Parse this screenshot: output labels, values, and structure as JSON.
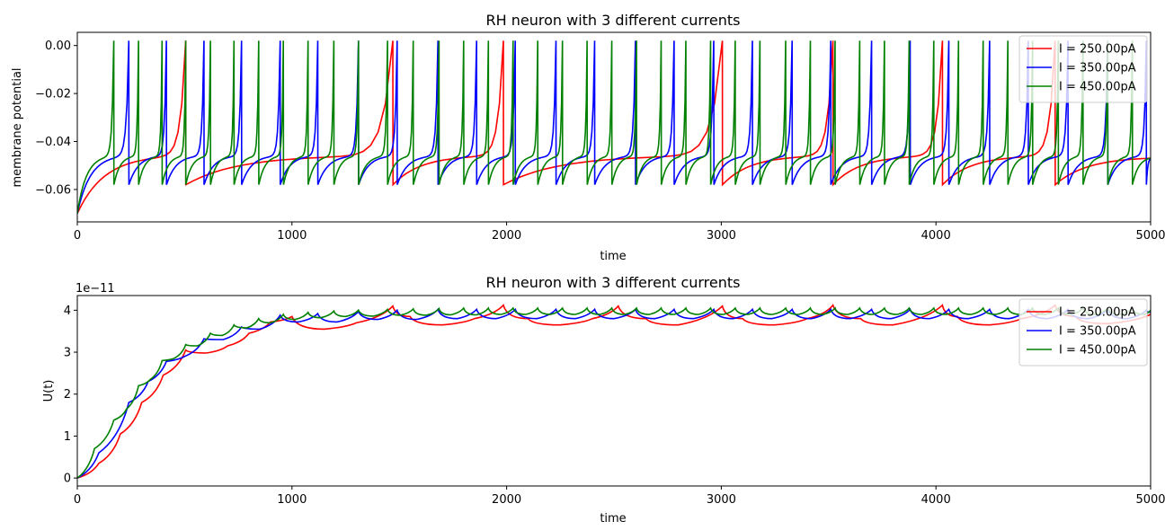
{
  "chart_data": [
    {
      "type": "line",
      "title": "RH neuron with 3 different currents",
      "xlabel": "time",
      "ylabel": "membrane potential",
      "xlim": [
        0,
        5000
      ],
      "ylim": [
        -0.0735,
        0.0055
      ],
      "xticks": [
        0,
        1000,
        2000,
        3000,
        4000,
        5000
      ],
      "xtick_labels": [
        "0",
        "1000",
        "2000",
        "3000",
        "4000",
        "5000"
      ],
      "yticks": [
        -0.06,
        -0.04,
        -0.02,
        0.0
      ],
      "ytick_labels": [
        "−0.06",
        "−0.04",
        "−0.02",
        "0.00"
      ],
      "legend_position": "top-right",
      "model": {
        "v_start": -0.07,
        "v_reset": -0.058,
        "v_spike": 0.002,
        "end": 5000
      },
      "series": [
        {
          "name": "I = 250.00pA",
          "color": "#ff0000",
          "spikes": [
            505,
            1470,
            1985,
            3005,
            3520,
            4030,
            4555
          ]
        },
        {
          "name": "I = 350.00pA",
          "color": "#0000ff",
          "spikes": [
            240,
            415,
            590,
            765,
            945,
            1120,
            1310,
            1490,
            1680,
            1860,
            2040,
            2230,
            2410,
            2600,
            2780,
            2965,
            3145,
            3330,
            3510,
            3700,
            3880,
            4060,
            4250,
            4430,
            4615,
            4800,
            4980
          ]
        },
        {
          "name": "I = 450.00pA",
          "color": "#008000",
          "spikes": [
            170,
            285,
            395,
            505,
            620,
            730,
            845,
            960,
            1075,
            1195,
            1310,
            1445,
            1565,
            1685,
            1800,
            1915,
            2030,
            2145,
            2260,
            2375,
            2490,
            2605,
            2720,
            2835,
            2950,
            3065,
            3180,
            3300,
            3415,
            3530,
            3645,
            3760,
            3875,
            3990,
            4105,
            4220,
            4335,
            4450,
            4570,
            4685,
            4800,
            4915
          ]
        }
      ]
    },
    {
      "type": "line",
      "title": "RH neuron with 3 different currents",
      "xlabel": "time",
      "ylabel": "U(t)",
      "offset_text": "1e−11",
      "xlim": [
        0,
        5000
      ],
      "ylim": [
        -0.19,
        4.35
      ],
      "xticks": [
        0,
        1000,
        2000,
        3000,
        4000,
        5000
      ],
      "xtick_labels": [
        "0",
        "1000",
        "2000",
        "3000",
        "4000",
        "5000"
      ],
      "yticks": [
        0,
        1,
        2,
        3,
        4
      ],
      "ytick_labels": [
        "0",
        "1",
        "2",
        "3",
        "4"
      ],
      "legend_position": "top-right",
      "series": [
        {
          "name": "I = 250.00pA",
          "color": "#ff0000",
          "x": [
            0,
            100,
            200,
            300,
            400,
            505,
            600,
            700,
            800,
            900,
            1000,
            1150,
            1300,
            1470,
            1550,
            1700,
            1850,
            1985,
            2100,
            2250,
            2400,
            2520,
            2650,
            2800,
            3005,
            3100,
            3250,
            3400,
            3520,
            3650,
            3800,
            4030,
            4100,
            4250,
            4400,
            4555,
            4650,
            4800,
            5000
          ],
          "y": [
            0,
            0.35,
            1.05,
            1.8,
            2.45,
            3.05,
            2.98,
            3.15,
            3.45,
            3.72,
            3.85,
            3.55,
            3.7,
            4.1,
            3.85,
            3.65,
            3.8,
            4.12,
            3.8,
            3.65,
            3.8,
            4.1,
            3.8,
            3.65,
            4.1,
            3.8,
            3.65,
            3.8,
            4.12,
            3.8,
            3.65,
            4.12,
            3.85,
            3.65,
            3.8,
            4.12,
            3.85,
            3.68,
            3.9
          ]
        },
        {
          "name": "I = 350.00pA",
          "color": "#0000ff",
          "x": [
            0,
            100,
            240,
            330,
            415,
            500,
            590,
            680,
            765,
            850,
            945,
            1030,
            1120,
            1210,
            1310,
            1400,
            1490,
            1580,
            1680,
            1770,
            1860,
            1950,
            2040,
            2140,
            2230,
            2320,
            2410,
            2500,
            2600,
            2690,
            2780,
            2870,
            2965,
            3055,
            3145,
            3235,
            3330,
            3420,
            3510,
            3600,
            3700,
            3790,
            3880,
            3970,
            4060,
            4150,
            4250,
            4340,
            4430,
            4520,
            4615,
            4710,
            4800,
            4890,
            4980,
            5000
          ],
          "y": [
            0,
            0.6,
            1.8,
            2.3,
            2.78,
            2.9,
            3.32,
            3.3,
            3.6,
            3.55,
            3.88,
            3.72,
            3.92,
            3.72,
            3.97,
            3.78,
            4.0,
            3.78,
            4.02,
            3.8,
            4.02,
            3.8,
            4.02,
            3.8,
            4.02,
            3.8,
            4.02,
            3.8,
            4.02,
            3.8,
            4.02,
            3.8,
            4.02,
            3.8,
            4.02,
            3.8,
            4.02,
            3.8,
            4.02,
            3.8,
            4.02,
            3.8,
            4.02,
            3.8,
            4.02,
            3.8,
            4.02,
            3.8,
            4.02,
            3.8,
            4.02,
            3.8,
            4.02,
            3.8,
            4.0,
            3.95
          ]
        },
        {
          "name": "I = 450.00pA",
          "color": "#008000",
          "x": [
            0,
            80,
            170,
            230,
            285,
            340,
            395,
            450,
            505,
            560,
            620,
            675,
            730,
            790,
            845,
            900,
            960,
            1015,
            1075,
            1135,
            1195,
            1250,
            1310,
            1380,
            1445,
            1505,
            1565,
            1625,
            1685,
            1740,
            1800,
            1860,
            1915,
            1975,
            2030,
            2090,
            2145,
            2205,
            2260,
            2320,
            2375,
            2435,
            2490,
            2550,
            2605,
            2665,
            2720,
            2780,
            2835,
            2895,
            2950,
            3010,
            3065,
            3125,
            3180,
            3240,
            3300,
            3360,
            3415,
            3475,
            3530,
            3590,
            3645,
            3705,
            3760,
            3820,
            3875,
            3935,
            3990,
            4050,
            4105,
            4165,
            4220,
            4280,
            4335,
            4395,
            4450,
            4510,
            4570,
            4630,
            4685,
            4745,
            4800,
            4860,
            4915,
            4970,
            5000
          ],
          "y": [
            0,
            0.7,
            1.38,
            1.65,
            2.2,
            2.35,
            2.8,
            2.85,
            3.18,
            3.15,
            3.45,
            3.4,
            3.65,
            3.58,
            3.8,
            3.7,
            3.9,
            3.78,
            3.95,
            3.82,
            3.98,
            3.85,
            4.0,
            3.86,
            4.02,
            3.88,
            4.03,
            3.88,
            4.04,
            3.89,
            4.05,
            3.89,
            4.05,
            3.9,
            4.05,
            3.9,
            4.05,
            3.9,
            4.05,
            3.9,
            4.05,
            3.9,
            4.05,
            3.9,
            4.05,
            3.9,
            4.05,
            3.9,
            4.05,
            3.9,
            4.05,
            3.9,
            4.05,
            3.9,
            4.05,
            3.9,
            4.05,
            3.9,
            4.05,
            3.9,
            4.05,
            3.9,
            4.05,
            3.9,
            4.05,
            3.9,
            4.05,
            3.9,
            4.05,
            3.9,
            4.05,
            3.9,
            4.05,
            3.9,
            4.05,
            3.9,
            4.05,
            3.9,
            4.05,
            3.9,
            4.05,
            3.9,
            4.05,
            3.9,
            4.05,
            3.9,
            4.0
          ]
        }
      ]
    }
  ]
}
